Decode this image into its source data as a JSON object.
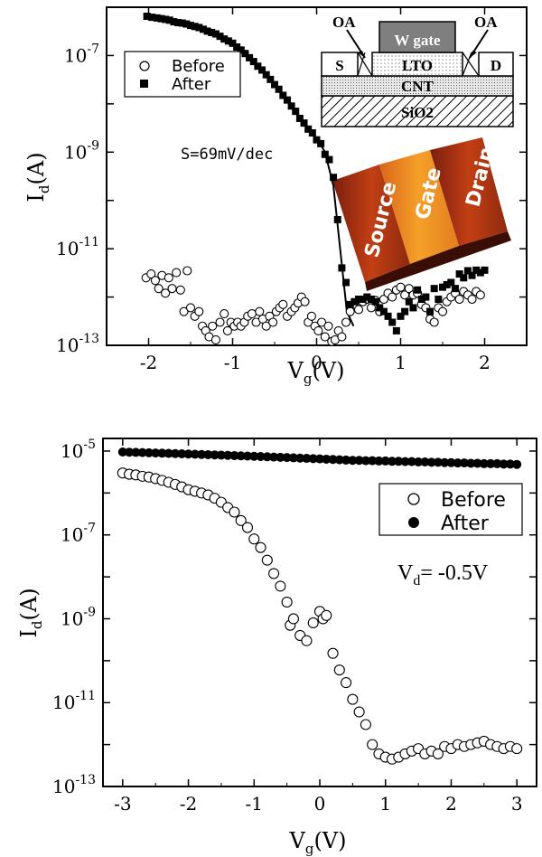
{
  "chart_data": [
    {
      "type": "scatter",
      "y_scale": "log",
      "xlim": [
        -2.5,
        2.5
      ],
      "ylim": [
        1e-13,
        1e-06
      ],
      "xticks": [
        -2,
        -1,
        0,
        1,
        2
      ],
      "xtick_labels": [
        "-2",
        "-1",
        "0",
        "1",
        "2"
      ],
      "yticks": [
        1e-13,
        1e-11,
        1e-09,
        1e-07
      ],
      "ytick_labels": [
        {
          "base": "10",
          "exp": "-13"
        },
        {
          "base": "10",
          "exp": "-11"
        },
        {
          "base": "10",
          "exp": "-9"
        },
        {
          "base": "10",
          "exp": "-7"
        }
      ],
      "xlabel": {
        "main": "V",
        "sub": "g",
        "tail": "(V)"
      },
      "ylabel": {
        "main": "I",
        "sub": "d",
        "tail": "(A)"
      },
      "annotation": "S=69mV/dec",
      "legend": {
        "position": "top-left",
        "entries": [
          "Before",
          "After"
        ]
      },
      "inset_schematic": {
        "labels": {
          "gate": "W gate",
          "oa_left": "OA",
          "oa_right": "OA",
          "source": "S",
          "drain": "D",
          "lto": "LTO",
          "cnt": "CNT",
          "sio2": "SiO2"
        }
      },
      "inset_image": {
        "labels": [
          "Source",
          "Gate",
          "Drain"
        ]
      },
      "series": [
        {
          "name": "Before",
          "marker": "open-circle",
          "x": [
            -2.03,
            -1.97,
            -1.92,
            -1.88,
            -1.84,
            -1.8,
            -1.76,
            -1.72,
            -1.67,
            -1.62,
            -1.58,
            -1.54,
            -1.5,
            -1.45,
            -1.4,
            -1.36,
            -1.32,
            -1.28,
            -1.24,
            -1.2,
            -1.15,
            -1.1,
            -1.06,
            -1.02,
            -0.98,
            -0.94,
            -0.9,
            -0.86,
            -0.82,
            -0.77,
            -0.72,
            -0.68,
            -0.64,
            -0.6,
            -0.56,
            -0.52,
            -0.48,
            -0.44,
            -0.4,
            -0.35,
            -0.3,
            -0.26,
            -0.22,
            -0.18,
            -0.14,
            -0.1,
            -0.06,
            -0.02,
            0.02,
            0.06,
            0.1,
            0.14,
            0.18,
            0.22,
            0.26,
            0.3,
            0.35,
            0.4,
            0.45,
            0.5,
            0.55,
            0.6,
            0.65,
            0.7,
            0.75,
            0.8,
            0.85,
            0.9,
            0.95,
            1.0,
            1.05,
            1.1,
            1.15,
            1.2,
            1.25,
            1.3,
            1.35,
            1.4,
            1.45,
            1.5,
            1.55,
            1.6,
            1.65,
            1.7,
            1.75,
            1.8,
            1.85,
            1.9,
            1.95
          ],
          "y": [
            2.5e-12,
            3e-12,
            2.2e-12,
            1.5e-12,
            2.8e-12,
            1.2e-12,
            2.5e-12,
            1.5e-12,
            3.2e-12,
            1.4e-12,
            5e-13,
            3.5e-12,
            6e-13,
            4e-13,
            5e-13,
            2.5e-13,
            2e-13,
            1.5e-13,
            2.5e-13,
            1.3e-13,
            3e-13,
            4.5e-13,
            2e-13,
            3e-13,
            2.5e-13,
            3e-13,
            2.5e-13,
            3e-13,
            4e-13,
            4.5e-13,
            3e-13,
            5e-13,
            3.5e-13,
            2.5e-13,
            4e-13,
            3e-13,
            5e-13,
            6e-13,
            7e-13,
            4e-13,
            5e-13,
            6e-13,
            7.5e-13,
            1e-12,
            8e-13,
            3e-13,
            4e-13,
            2.5e-13,
            2e-13,
            3e-13,
            1.5e-13,
            2.5e-13,
            1.2e-13,
            1.3e-13,
            2e-13,
            1.5e-13,
            3e-13,
            5e-13,
            7e-13,
            5.5e-13,
            8e-13,
            9e-13,
            6e-13,
            8.5e-13,
            5e-13,
            9e-13,
            1.2e-12,
            1e-12,
            1.4e-12,
            1.6e-12,
            1.1e-12,
            1.5e-12,
            1.1e-12,
            1.2e-12,
            7e-13,
            6e-13,
            3.5e-13,
            3e-13,
            6e-13,
            5e-13,
            8e-13,
            1e-12,
            1.2e-12,
            9e-13,
            1.3e-12,
            1.1e-12,
            9e-13,
            1.3e-12,
            1.1e-12
          ]
        },
        {
          "name": "After",
          "marker": "filled-square",
          "x": [
            -2.02,
            -1.96,
            -1.9,
            -1.85,
            -1.8,
            -1.75,
            -1.7,
            -1.65,
            -1.6,
            -1.55,
            -1.5,
            -1.45,
            -1.4,
            -1.35,
            -1.3,
            -1.25,
            -1.2,
            -1.15,
            -1.1,
            -1.05,
            -1.0,
            -0.95,
            -0.9,
            -0.85,
            -0.8,
            -0.75,
            -0.7,
            -0.65,
            -0.6,
            -0.55,
            -0.5,
            -0.45,
            -0.4,
            -0.35,
            -0.3,
            -0.25,
            -0.2,
            -0.15,
            -0.1,
            -0.05,
            0.0,
            0.05,
            0.1,
            0.15,
            0.2,
            0.25,
            0.3,
            0.35,
            0.4,
            0.45,
            0.5,
            0.55,
            0.6,
            0.65,
            0.7,
            0.75,
            0.8,
            0.85,
            0.9,
            0.95,
            1.0,
            1.05,
            1.1,
            1.15,
            1.2,
            1.25,
            1.3,
            1.35,
            1.4,
            1.45,
            1.5,
            1.55,
            1.6,
            1.65,
            1.7,
            1.75,
            1.8,
            1.85,
            1.9,
            1.95,
            2.0
          ],
          "y": [
            6.5e-07,
            6.2e-07,
            6e-07,
            5.8e-07,
            5.6e-07,
            5.4e-07,
            5e-07,
            4.8e-07,
            4.7e-07,
            4.5e-07,
            4.2e-07,
            4e-07,
            3.8e-07,
            3.5e-07,
            3.2e-07,
            3e-07,
            2.8e-07,
            2.5e-07,
            2.2e-07,
            2e-07,
            1.8e-07,
            1.5e-07,
            1.3e-07,
            1.1e-07,
            9e-08,
            7.5e-08,
            6e-08,
            5e-08,
            4e-08,
            3.2e-08,
            2.5e-08,
            2e-08,
            1.5e-08,
            1.2e-08,
            9e-09,
            7e-09,
            5e-09,
            4e-09,
            3e-09,
            2.5e-09,
            1.8e-09,
            1.5e-09,
            9e-10,
            7e-10,
            3e-10,
            4e-11,
            4e-12,
            2e-12,
            7e-13,
            8e-13,
            9e-13,
            9e-13,
            1e-12,
            9e-13,
            8e-13,
            6e-13,
            5e-13,
            4e-13,
            3e-13,
            2e-13,
            4e-13,
            5e-13,
            8e-13,
            6e-13,
            1.4e-12,
            9e-13,
            1e-12,
            5e-13,
            1.5e-12,
            9e-13,
            1.6e-12,
            1.8e-12,
            2e-12,
            1.5e-12,
            3e-12,
            2.5e-12,
            3.5e-12,
            2.8e-12,
            3.6e-12,
            3.2e-12,
            3.6e-12
          ]
        }
      ],
      "fit_line": {
        "x": [
          0.0,
          0.1,
          0.2,
          0.28,
          0.36,
          0.44
        ],
        "y": [
          2e-09,
          1e-09,
          2e-10,
          1e-11,
          5e-13,
          2.5e-13
        ]
      }
    },
    {
      "type": "scatter",
      "y_scale": "log",
      "xlim": [
        -3.3,
        3.3
      ],
      "ylim": [
        1e-13,
        2e-05
      ],
      "xticks": [
        -3,
        -2,
        -1,
        0,
        1,
        2,
        3
      ],
      "xtick_labels": [
        "-3",
        "-2",
        "-1",
        "0",
        "1",
        "2",
        "3"
      ],
      "yticks": [
        1e-13,
        1e-11,
        1e-09,
        1e-07,
        1e-05
      ],
      "ytick_labels": [
        {
          "base": "10",
          "exp": "-13"
        },
        {
          "base": "10",
          "exp": "-11"
        },
        {
          "base": "10",
          "exp": "-9"
        },
        {
          "base": "10",
          "exp": "-7"
        },
        {
          "base": "10",
          "exp": "-5"
        }
      ],
      "xlabel": {
        "main": "V",
        "sub": "g",
        "tail": "(V)"
      },
      "ylabel": {
        "main": "I",
        "sub": "d",
        "tail": "(A)"
      },
      "annotation": {
        "main": "V",
        "sub": "d",
        "tail": "= -0.5V"
      },
      "legend": {
        "position": "top-right",
        "entries": [
          "Before",
          "After"
        ]
      },
      "series": [
        {
          "name": "Before",
          "marker": "open-circle",
          "x": [
            -3.0,
            -2.9,
            -2.8,
            -2.7,
            -2.6,
            -2.5,
            -2.4,
            -2.3,
            -2.2,
            -2.1,
            -2.0,
            -1.9,
            -1.8,
            -1.7,
            -1.6,
            -1.5,
            -1.4,
            -1.3,
            -1.2,
            -1.1,
            -1.0,
            -0.9,
            -0.8,
            -0.7,
            -0.6,
            -0.5,
            -0.45,
            -0.4,
            -0.3,
            -0.2,
            -0.1,
            0.0,
            0.05,
            0.1,
            0.2,
            0.3,
            0.4,
            0.5,
            0.6,
            0.7,
            0.8,
            0.9,
            1.0,
            1.1,
            1.2,
            1.3,
            1.4,
            1.5,
            1.6,
            1.7,
            1.8,
            1.9,
            2.0,
            2.1,
            2.2,
            2.3,
            2.4,
            2.5,
            2.6,
            2.7,
            2.8,
            2.9,
            3.0
          ],
          "y": [
            3e-06,
            2.8e-06,
            2.7e-06,
            2.5e-06,
            2.4e-06,
            2.2e-06,
            2e-06,
            1.8e-06,
            1.6e-06,
            1.4e-06,
            1.2e-06,
            1.1e-06,
            1e-06,
            9e-07,
            7.5e-07,
            6e-07,
            4.5e-07,
            3.5e-07,
            2.2e-07,
            1.5e-07,
            8e-08,
            5e-08,
            2.5e-08,
            1.2e-08,
            6e-09,
            2.5e-09,
            7e-10,
            1e-09,
            4e-10,
            3e-10,
            8e-10,
            1.5e-09,
            1e-09,
            1.2e-09,
            1.5e-10,
            6e-11,
            3e-11,
            1.2e-11,
            6e-12,
            3e-12,
            1e-12,
            6e-13,
            5e-13,
            4.5e-13,
            5e-13,
            6e-13,
            7e-13,
            8e-13,
            6e-13,
            7e-13,
            6e-13,
            9e-13,
            8e-13,
            1e-12,
            9e-13,
            1e-12,
            1.1e-12,
            1.2e-12,
            1e-12,
            9e-13,
            8e-13,
            9e-13,
            8e-13
          ]
        },
        {
          "name": "After",
          "marker": "filled-circle",
          "x": [
            -3.0,
            -2.9,
            -2.8,
            -2.7,
            -2.6,
            -2.5,
            -2.4,
            -2.3,
            -2.2,
            -2.1,
            -2.0,
            -1.9,
            -1.8,
            -1.7,
            -1.6,
            -1.5,
            -1.4,
            -1.3,
            -1.2,
            -1.1,
            -1.0,
            -0.9,
            -0.8,
            -0.7,
            -0.6,
            -0.5,
            -0.4,
            -0.3,
            -0.2,
            -0.1,
            0.0,
            0.1,
            0.2,
            0.3,
            0.4,
            0.5,
            0.6,
            0.7,
            0.8,
            0.9,
            1.0,
            1.1,
            1.2,
            1.3,
            1.4,
            1.5,
            1.6,
            1.7,
            1.8,
            1.9,
            2.0,
            2.1,
            2.2,
            2.3,
            2.4,
            2.5,
            2.6,
            2.7,
            2.8,
            2.9,
            3.0
          ],
          "y": [
            9.5e-06,
            9.4e-06,
            9.3e-06,
            9.2e-06,
            9.1e-06,
            9e-06,
            8.9e-06,
            8.8e-06,
            8.7e-06,
            8.6e-06,
            8.5e-06,
            8.4e-06,
            8.3e-06,
            8.2e-06,
            8.1e-06,
            8e-06,
            7.9e-06,
            7.8e-06,
            7.7e-06,
            7.6e-06,
            7.5e-06,
            7.4e-06,
            7.3e-06,
            7.2e-06,
            7.1e-06,
            7e-06,
            6.9e-06,
            6.8e-06,
            6.7e-06,
            6.6e-06,
            6.5e-06,
            6.4e-06,
            6.3e-06,
            6.2e-06,
            6.1e-06,
            6e-06,
            6e-06,
            5.9e-06,
            5.9e-06,
            5.8e-06,
            5.8e-06,
            5.7e-06,
            5.7e-06,
            5.6e-06,
            5.6e-06,
            5.5e-06,
            5.5e-06,
            5.4e-06,
            5.4e-06,
            5.3e-06,
            5.3e-06,
            5.2e-06,
            5.2e-06,
            5.1e-06,
            5.1e-06,
            5e-06,
            5e-06,
            5e-06,
            4.9e-06,
            4.9e-06,
            4.8e-06
          ]
        }
      ]
    }
  ]
}
